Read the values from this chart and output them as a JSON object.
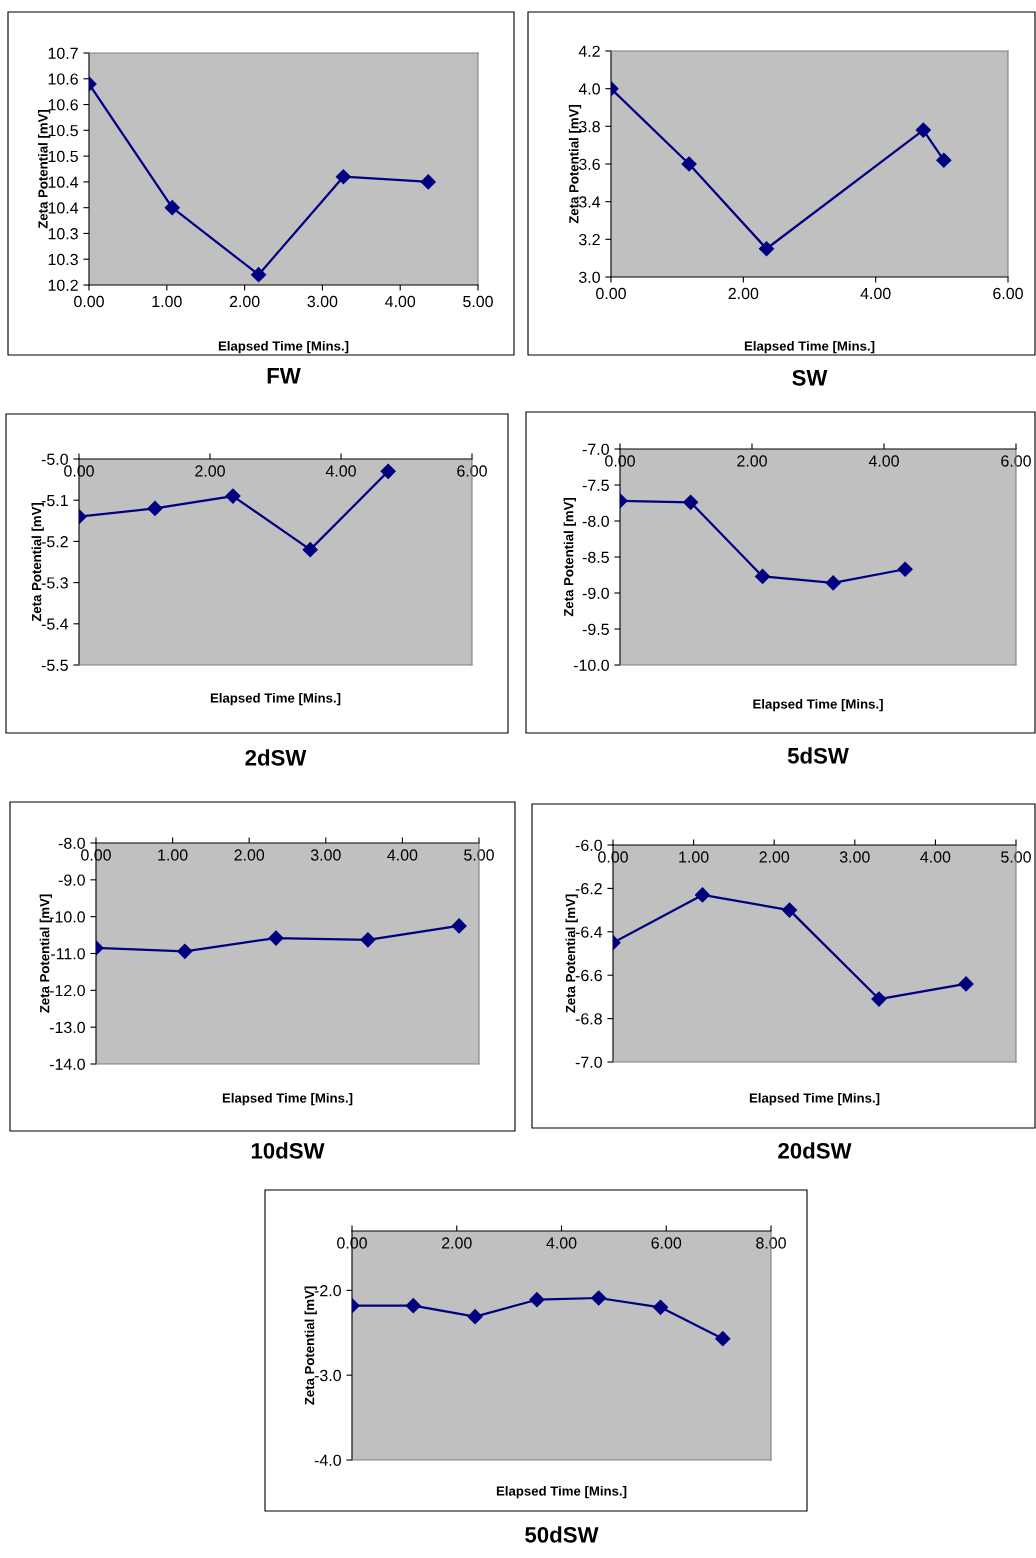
{
  "chart_data": [
    {
      "type": "line",
      "title": "FW",
      "xlabel": "Elapsed Time [Mins.]",
      "ylabel": "Zeta Potential [mV]",
      "marker": "diamond",
      "line_style": "solid",
      "grid": false,
      "series": [
        {
          "color": "#000080",
          "x": [
            0.0,
            1.07,
            2.18,
            3.27,
            4.36
          ],
          "values": [
            10.59,
            10.35,
            10.22,
            10.41,
            10.4
          ]
        }
      ],
      "xlim": [
        0,
        5
      ],
      "xticks": [
        {
          "value": 0,
          "label": "0.00"
        },
        {
          "value": 1,
          "label": "1.00"
        },
        {
          "value": 2,
          "label": "2.00"
        },
        {
          "value": 3,
          "label": "3.00"
        },
        {
          "value": 4,
          "label": "4.00"
        },
        {
          "value": 5,
          "label": "5.00"
        }
      ],
      "ylim": [
        10.2,
        10.65
      ],
      "yticks": [
        {
          "value": 10.2,
          "label": "10.2"
        },
        {
          "value": 10.25,
          "label": "10.3"
        },
        {
          "value": 10.3,
          "label": "10.3"
        },
        {
          "value": 10.35,
          "label": "10.4"
        },
        {
          "value": 10.4,
          "label": "10.4"
        },
        {
          "value": 10.45,
          "label": "10.5"
        },
        {
          "value": 10.5,
          "label": "10.5"
        },
        {
          "value": 10.55,
          "label": "10.6"
        },
        {
          "value": 10.6,
          "label": "10.6"
        },
        {
          "value": 10.65,
          "label": "10.7"
        }
      ]
    },
    {
      "type": "line",
      "title": "SW",
      "xlabel": "Elapsed Time [Mins.]",
      "ylabel": "Zeta Potential [mV]",
      "marker": "diamond",
      "line_style": "solid",
      "grid": false,
      "series": [
        {
          "color": "#000080",
          "x": [
            0.0,
            1.18,
            2.35,
            4.72,
            5.03
          ],
          "values": [
            4.0,
            3.6,
            3.15,
            3.78,
            3.62
          ]
        }
      ],
      "xlim": [
        0,
        6
      ],
      "xticks": [
        {
          "value": 0,
          "label": "0.00"
        },
        {
          "value": 2,
          "label": "2.00"
        },
        {
          "value": 4,
          "label": "4.00"
        },
        {
          "value": 6,
          "label": "6.00"
        }
      ],
      "ylim": [
        3.0,
        4.2
      ],
      "yticks": [
        {
          "value": 3.0,
          "label": "3.0"
        },
        3.2,
        3.4,
        3.6,
        3.8,
        {
          "value": 4.0,
          "label": "4.0"
        },
        4.2
      ]
    },
    {
      "type": "line",
      "title": "2dSW",
      "xlabel": "Elapsed Time [Mins.]",
      "ylabel": "Zeta Potential [mV]",
      "marker": "diamond",
      "line_style": "solid",
      "grid": false,
      "series": [
        {
          "color": "#000080",
          "x": [
            0.0,
            1.16,
            2.35,
            3.53,
            4.72
          ],
          "values": [
            -5.14,
            -5.12,
            -5.09,
            -5.22,
            -5.03
          ]
        }
      ],
      "xlim": [
        0,
        6
      ],
      "xticks": [
        {
          "value": 0,
          "label": "0.00"
        },
        {
          "value": 2,
          "label": "2.00"
        },
        {
          "value": 4,
          "label": "4.00"
        },
        {
          "value": 6,
          "label": "6.00"
        }
      ],
      "ylim": [
        -5.5,
        -5.0
      ],
      "yticks": [
        {
          "value": -5.5,
          "label": "-5.5"
        },
        {
          "value": -5.4,
          "label": "-5.4"
        },
        {
          "value": -5.3,
          "label": "-5.3"
        },
        {
          "value": -5.2,
          "label": "-5.2"
        },
        {
          "value": -5.1,
          "label": "-5.1"
        },
        {
          "value": -5.0,
          "label": "-5.0"
        }
      ]
    },
    {
      "type": "line",
      "title": "5dSW",
      "xlabel": "Elapsed Time [Mins.]",
      "ylabel": "Zeta Potential [mV]",
      "marker": "diamond",
      "line_style": "solid",
      "grid": false,
      "series": [
        {
          "color": "#000080",
          "x": [
            0.0,
            1.07,
            2.16,
            3.23,
            4.32
          ],
          "values": [
            -7.72,
            -7.74,
            -8.77,
            -8.86,
            -8.67
          ]
        }
      ],
      "xlim": [
        0,
        6
      ],
      "xticks": [
        {
          "value": 0,
          "label": "0.00"
        },
        {
          "value": 2,
          "label": "2.00"
        },
        {
          "value": 4,
          "label": "4.00"
        },
        {
          "value": 6,
          "label": "6.00"
        }
      ],
      "ylim": [
        -10.0,
        -7.0
      ],
      "yticks": [
        {
          "value": -10.0,
          "label": "-10.0"
        },
        {
          "value": -9.5,
          "label": "-9.5"
        },
        {
          "value": -9.0,
          "label": "-9.0"
        },
        {
          "value": -8.5,
          "label": "-8.5"
        },
        {
          "value": -8.0,
          "label": "-8.0"
        },
        {
          "value": -7.5,
          "label": "-7.5"
        },
        {
          "value": -7.0,
          "label": "-7.0"
        }
      ]
    },
    {
      "type": "line",
      "title": "10dSW",
      "xlabel": "Elapsed Time [Mins.]",
      "ylabel": "Zeta Potential [mV]",
      "marker": "diamond",
      "line_style": "solid",
      "grid": false,
      "series": [
        {
          "color": "#000080",
          "x": [
            0.0,
            1.16,
            2.35,
            3.55,
            4.74
          ],
          "values": [
            -10.85,
            -10.94,
            -10.58,
            -10.63,
            -10.25
          ]
        }
      ],
      "xlim": [
        0,
        5
      ],
      "xticks": [
        {
          "value": 0,
          "label": "0.00"
        },
        {
          "value": 1,
          "label": "1.00"
        },
        {
          "value": 2,
          "label": "2.00"
        },
        {
          "value": 3,
          "label": "3.00"
        },
        {
          "value": 4,
          "label": "4.00"
        },
        {
          "value": 5,
          "label": "5.00"
        }
      ],
      "ylim": [
        -14.0,
        -8.0
      ],
      "yticks": [
        {
          "value": -14.0,
          "label": "-14.0"
        },
        {
          "value": -13.0,
          "label": "-13.0"
        },
        {
          "value": -12.0,
          "label": "-12.0"
        },
        {
          "value": -11.0,
          "label": "-11.0"
        },
        {
          "value": -10.0,
          "label": "-10.0"
        },
        {
          "value": -9.0,
          "label": "-9.0"
        },
        {
          "value": -8.0,
          "label": "-8.0"
        }
      ]
    },
    {
      "type": "line",
      "title": "20dSW",
      "xlabel": "Elapsed Time [Mins.]",
      "ylabel": "Zeta Potential [mV]",
      "marker": "diamond",
      "line_style": "solid",
      "grid": false,
      "series": [
        {
          "color": "#000080",
          "x": [
            0.0,
            1.11,
            2.19,
            3.3,
            4.38
          ],
          "values": [
            -6.45,
            -6.23,
            -6.3,
            -6.71,
            -6.64
          ]
        }
      ],
      "xlim": [
        0,
        5
      ],
      "xticks": [
        {
          "value": 0,
          "label": "0.00"
        },
        {
          "value": 1,
          "label": "1.00"
        },
        {
          "value": 2,
          "label": "2.00"
        },
        {
          "value": 3,
          "label": "3.00"
        },
        {
          "value": 4,
          "label": "4.00"
        },
        {
          "value": 5,
          "label": "5.00"
        }
      ],
      "ylim": [
        -7.0,
        -6.0
      ],
      "yticks": [
        {
          "value": -7.0,
          "label": "-7.0"
        },
        -6.8,
        -6.6,
        -6.4,
        -6.2,
        {
          "value": -6.0,
          "label": "-6.0"
        }
      ]
    },
    {
      "type": "line",
      "title": "50dSW",
      "xlabel": "Elapsed Time [Mins.]",
      "ylabel": "Zeta Potential [mV]",
      "marker": "diamond",
      "line_style": "solid",
      "grid": false,
      "series": [
        {
          "color": "#000080",
          "x": [
            0.0,
            1.17,
            2.35,
            3.53,
            4.71,
            5.89,
            7.08
          ],
          "values": [
            -2.18,
            -2.18,
            -2.31,
            -2.11,
            -2.09,
            -2.2,
            -2.57
          ]
        }
      ],
      "xlim": [
        0,
        8
      ],
      "xticks": [
        {
          "value": 0,
          "label": "0.00"
        },
        {
          "value": 2,
          "label": "2.00"
        },
        {
          "value": 4,
          "label": "4.00"
        },
        {
          "value": 6,
          "label": "6.00"
        },
        {
          "value": 8,
          "label": "8.00"
        }
      ],
      "ylim": [
        -4.0,
        -1.3
      ],
      "yticks": [
        {
          "value": -4.0,
          "label": "-4.0"
        },
        {
          "value": -3.0,
          "label": "-3.0"
        },
        {
          "value": -2.0,
          "label": "-2.0"
        }
      ]
    }
  ]
}
